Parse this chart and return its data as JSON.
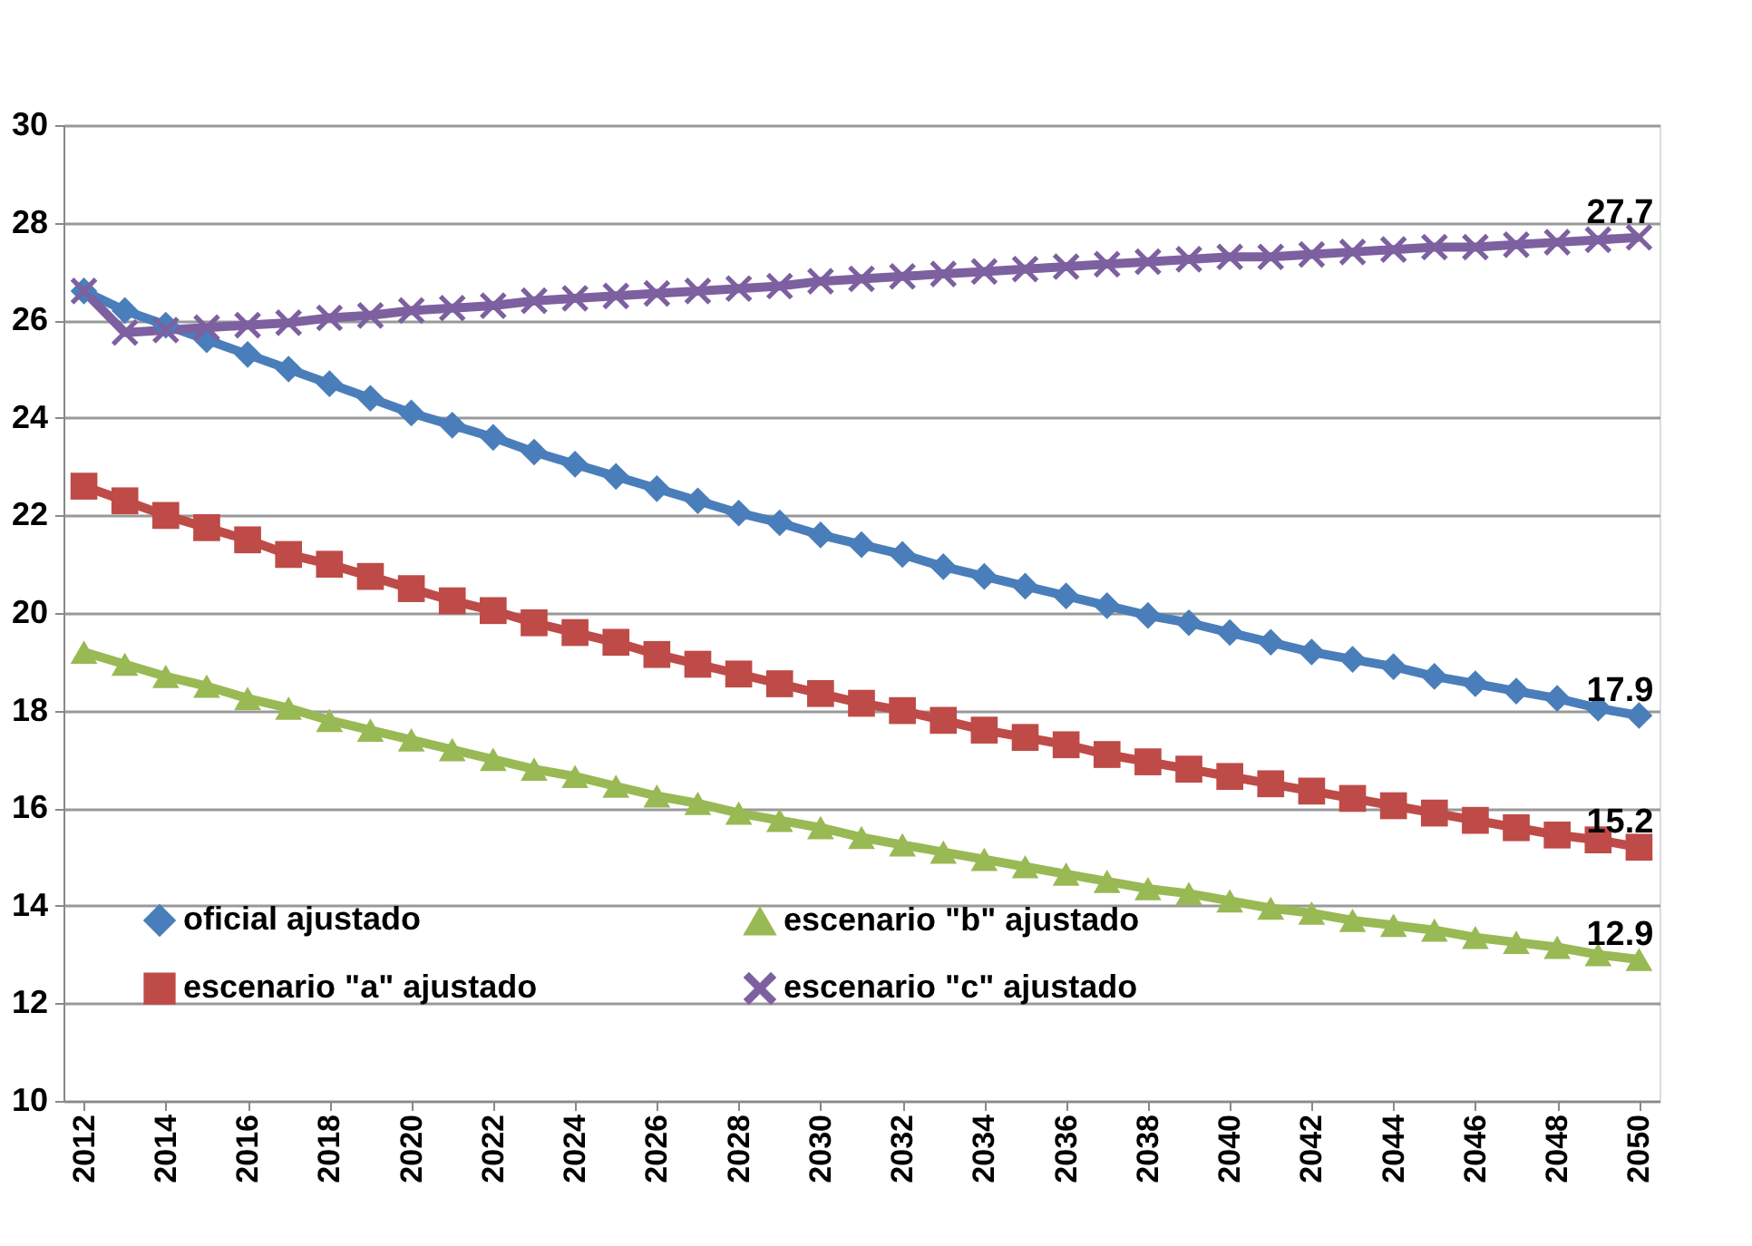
{
  "chart_data": {
    "type": "line",
    "x": [
      2012,
      2013,
      2014,
      2015,
      2016,
      2017,
      2018,
      2019,
      2020,
      2021,
      2022,
      2023,
      2024,
      2025,
      2026,
      2027,
      2028,
      2029,
      2030,
      2031,
      2032,
      2033,
      2034,
      2035,
      2036,
      2037,
      2038,
      2039,
      2040,
      2041,
      2042,
      2043,
      2044,
      2045,
      2046,
      2047,
      2048,
      2049,
      2050
    ],
    "xlim": [
      2011.5,
      2050.5
    ],
    "xticks": [
      2012,
      2014,
      2016,
      2018,
      2020,
      2022,
      2024,
      2026,
      2028,
      2030,
      2032,
      2034,
      2036,
      2038,
      2040,
      2042,
      2044,
      2046,
      2048,
      2050
    ],
    "ylim": [
      10,
      30
    ],
    "yticks": [
      10,
      12,
      14,
      16,
      18,
      20,
      22,
      24,
      26,
      28,
      30
    ],
    "grid": "y",
    "legend": "bottom",
    "line_style": "solid",
    "series": [
      {
        "name": "oficial ajustado",
        "color": "#4a7ebb",
        "marker": "diamond",
        "values": [
          26.6,
          26.2,
          25.9,
          25.6,
          25.3,
          25.0,
          24.7,
          24.4,
          24.1,
          23.85,
          23.6,
          23.3,
          23.05,
          22.8,
          22.55,
          22.3,
          22.05,
          21.85,
          21.6,
          21.4,
          21.2,
          20.95,
          20.75,
          20.55,
          20.35,
          20.15,
          19.95,
          19.8,
          19.6,
          19.4,
          19.2,
          19.05,
          18.9,
          18.7,
          18.55,
          18.4,
          18.25,
          18.05,
          17.9
        ],
        "value_labels": [
          null,
          null,
          null,
          null,
          null,
          null,
          null,
          null,
          null,
          null,
          null,
          null,
          null,
          null,
          null,
          null,
          null,
          null,
          null,
          null,
          null,
          null,
          null,
          null,
          null,
          null,
          null,
          null,
          null,
          null,
          null,
          null,
          null,
          null,
          null,
          null,
          null,
          null,
          "17.9"
        ]
      },
      {
        "name": "escenario \"a\" ajustado",
        "color": "#be4b48",
        "marker": "square",
        "values": [
          22.6,
          22.3,
          22.0,
          21.75,
          21.5,
          21.2,
          21.0,
          20.75,
          20.5,
          20.25,
          20.05,
          19.8,
          19.6,
          19.4,
          19.15,
          18.95,
          18.75,
          18.55,
          18.35,
          18.15,
          18.0,
          17.8,
          17.6,
          17.45,
          17.3,
          17.1,
          16.95,
          16.8,
          16.65,
          16.5,
          16.35,
          16.2,
          16.05,
          15.9,
          15.75,
          15.6,
          15.45,
          15.35,
          15.2
        ],
        "value_labels": [
          null,
          null,
          null,
          null,
          null,
          null,
          null,
          null,
          null,
          null,
          null,
          null,
          null,
          null,
          null,
          null,
          null,
          null,
          null,
          null,
          null,
          null,
          null,
          null,
          null,
          null,
          null,
          null,
          null,
          null,
          null,
          null,
          null,
          null,
          null,
          null,
          null,
          null,
          "15.2"
        ]
      },
      {
        "name": "escenario \"b\" ajustado",
        "color": "#98b954",
        "marker": "triangle",
        "values": [
          19.2,
          18.95,
          18.7,
          18.5,
          18.25,
          18.05,
          17.8,
          17.6,
          17.4,
          17.2,
          17.0,
          16.8,
          16.65,
          16.45,
          16.25,
          16.1,
          15.9,
          15.75,
          15.6,
          15.4,
          15.25,
          15.1,
          14.95,
          14.8,
          14.65,
          14.5,
          14.35,
          14.25,
          14.1,
          13.95,
          13.85,
          13.7,
          13.6,
          13.5,
          13.35,
          13.25,
          13.15,
          13.0,
          12.9
        ],
        "value_labels": [
          null,
          null,
          null,
          null,
          null,
          null,
          null,
          null,
          null,
          null,
          null,
          null,
          null,
          null,
          null,
          null,
          null,
          null,
          null,
          null,
          null,
          null,
          null,
          null,
          null,
          null,
          null,
          null,
          null,
          null,
          null,
          null,
          null,
          null,
          null,
          null,
          null,
          null,
          "12.9"
        ]
      },
      {
        "name": "escenario \"c\" ajustado",
        "color": "#7d60a0",
        "marker": "cross",
        "values": [
          26.6,
          25.75,
          25.8,
          25.85,
          25.9,
          25.95,
          26.05,
          26.1,
          26.2,
          26.25,
          26.3,
          26.4,
          26.45,
          26.5,
          26.55,
          26.6,
          26.65,
          26.7,
          26.8,
          26.85,
          26.9,
          26.95,
          27.0,
          27.05,
          27.1,
          27.15,
          27.2,
          27.25,
          27.3,
          27.3,
          27.35,
          27.4,
          27.45,
          27.5,
          27.5,
          27.55,
          27.6,
          27.65,
          27.7
        ],
        "value_labels": [
          null,
          null,
          null,
          null,
          null,
          null,
          null,
          null,
          null,
          null,
          null,
          null,
          null,
          null,
          null,
          null,
          null,
          null,
          null,
          null,
          null,
          null,
          null,
          null,
          null,
          null,
          null,
          null,
          null,
          null,
          null,
          null,
          null,
          null,
          null,
          null,
          null,
          null,
          "27.7"
        ]
      }
    ]
  }
}
